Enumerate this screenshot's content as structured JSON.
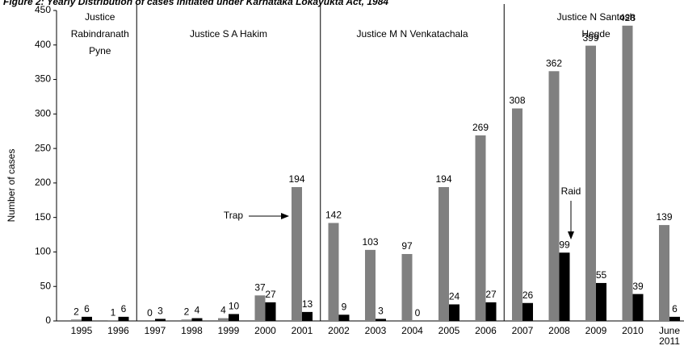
{
  "chart_data": {
    "type": "bar",
    "title": "Figure 2: Yearly Distribution of cases initiated under Karnataka Lokayukta Act, 1984",
    "y_label": "Number of cases",
    "categories": [
      "1995",
      "1996",
      "1997",
      "1998",
      "1999",
      "2000",
      "2001",
      "2002",
      "2003",
      "2004",
      "2005",
      "2006",
      "2007",
      "2008",
      "2009",
      "2010",
      "June 2011"
    ],
    "series": [
      {
        "color": "#808080",
        "values": [
          2,
          1,
          0,
          2,
          4,
          37,
          194,
          142,
          103,
          97,
          194,
          269,
          308,
          362,
          399,
          428,
          139
        ]
      },
      {
        "color": "#000000",
        "values": [
          6,
          6,
          3,
          4,
          10,
          27,
          13,
          9,
          3,
          0,
          24,
          27,
          26,
          99,
          55,
          39,
          6
        ]
      }
    ],
    "periods": [
      [
        "Justice",
        "Rabindranath",
        "Pyne"
      ],
      [
        "Justice  S A Hakim"
      ],
      [
        "Justice  M N Venkatachala"
      ],
      [
        "Justice N Santosh",
        "Hegde"
      ]
    ],
    "annotations": [
      "Trap",
      "Raid"
    ],
    "ylim": [
      0,
      450
    ],
    "yticks": [
      0,
      50,
      100,
      150,
      200,
      250,
      300,
      350,
      400,
      450
    ]
  }
}
